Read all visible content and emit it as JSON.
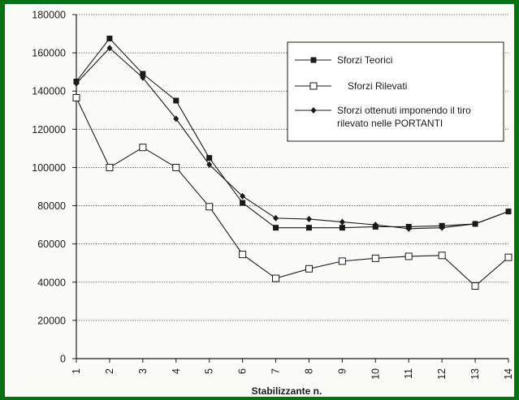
{
  "chart_data": {
    "type": "line",
    "title": "",
    "xlabel": "Stabilizzante n.",
    "ylabel": "",
    "x": [
      1,
      2,
      3,
      4,
      5,
      6,
      7,
      8,
      9,
      10,
      11,
      12,
      13,
      14
    ],
    "ylim": [
      0,
      180000
    ],
    "yticks": [
      0,
      20000,
      40000,
      60000,
      80000,
      100000,
      120000,
      140000,
      160000,
      180000
    ],
    "ytick_labels": [
      "0",
      "20000",
      "40000",
      "60000",
      "80000",
      "100000",
      "120000",
      "140000",
      "160000",
      "180000"
    ],
    "xtick_labels": [
      "1",
      "2",
      "3",
      "4",
      "5",
      "6",
      "7",
      "8",
      "9",
      "10",
      "11",
      "12",
      "13",
      "14"
    ],
    "grid": true,
    "legend_position": "top-right",
    "series": [
      {
        "name": "Sforzi Teorici",
        "marker": "filled-square",
        "values": [
          145000,
          167500,
          149000,
          135000,
          105000,
          81500,
          68500,
          68500,
          68500,
          69000,
          69000,
          69500,
          70500,
          77000
        ]
      },
      {
        "name": "Sforzi Rilevati",
        "marker": "open-square",
        "values": [
          136500,
          100000,
          110500,
          100000,
          79500,
          54500,
          42000,
          47000,
          51000,
          52500,
          53500,
          54000,
          38000,
          53000
        ]
      },
      {
        "name": "Sforzi ottenuti imponendo il tiro rilevato nelle PORTANTI",
        "marker": "filled-diamond",
        "values": [
          144000,
          162500,
          147000,
          125500,
          101500,
          85000,
          73500,
          73000,
          71500,
          70000,
          68000,
          68500,
          70500,
          77000
        ]
      }
    ],
    "legend_lines": [
      [
        "Sforzi Teorici"
      ],
      [
        "Sforzi Rilevati"
      ],
      [
        "Sforzi ottenuti imponendo il tiro",
        "rilevato nelle PORTANTI"
      ]
    ]
  },
  "colors": {
    "frame": "#0a6e12",
    "ink": "#1a1a1a",
    "grid": "#555555"
  }
}
